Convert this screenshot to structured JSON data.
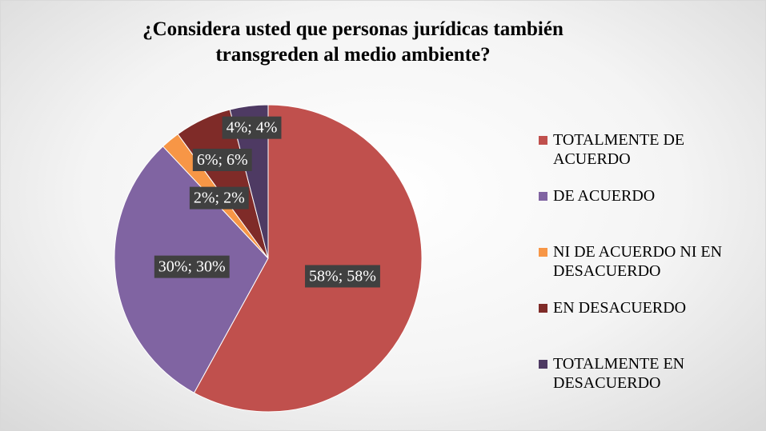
{
  "chart_data": {
    "type": "pie",
    "title": "¿Considera usted que personas jurídicas también transgreden al medio ambiente?",
    "categories": [
      "TOTALMENTE DE ACUERDO",
      "DE ACUERDO",
      "NI DE ACUERDO NI EN DESACUERDO",
      "EN DESACUERDO",
      "TOTALMENTE EN DESACUERDO"
    ],
    "values": [
      58,
      30,
      2,
      6,
      4
    ],
    "value_labels": [
      "58%; 58%",
      "30%; 30%",
      "2%; 2%",
      "6%; 6%",
      "4%; 4%"
    ],
    "colors": [
      "#c0504d",
      "#8064a2",
      "#f79646",
      "#7f2b28",
      "#4e3a63"
    ],
    "legend": "right"
  }
}
